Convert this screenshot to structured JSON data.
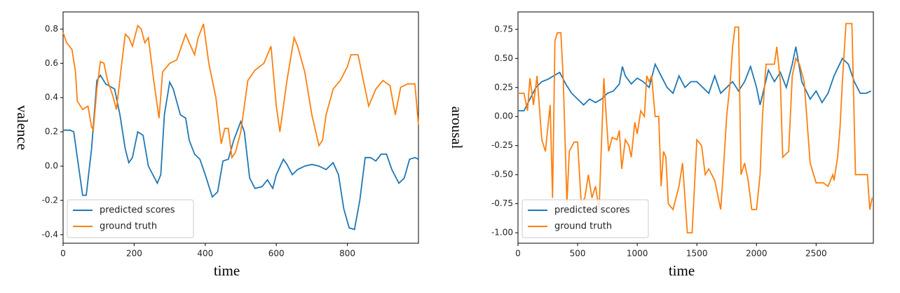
{
  "chart_data": [
    {
      "type": "line",
      "xlabel": "time",
      "ylabel": "valence",
      "xlim": [
        0,
        1000
      ],
      "ylim": [
        -0.45,
        0.9
      ],
      "xticks": [
        0,
        200,
        400,
        600,
        800
      ],
      "yticks": [
        -0.4,
        -0.2,
        {
          "value": 0,
          "label": "0.0"
        },
        0.2,
        0.4,
        0.6,
        0.8
      ],
      "legend": "lower left",
      "series": [
        {
          "name": "predicted scores",
          "color": "#1f77b4",
          "x": [
            0,
            20,
            30,
            40,
            55,
            65,
            80,
            95,
            105,
            120,
            145,
            160,
            175,
            185,
            195,
            210,
            225,
            240,
            265,
            275,
            285,
            300,
            310,
            330,
            345,
            355,
            370,
            385,
            400,
            420,
            435,
            450,
            465,
            480,
            500,
            510,
            525,
            540,
            560,
            575,
            590,
            600,
            620,
            630,
            645,
            660,
            680,
            700,
            720,
            740,
            760,
            775,
            790,
            805,
            820,
            835,
            850,
            865,
            880,
            895,
            910,
            925,
            945,
            960,
            975,
            990,
            1000
          ],
          "values": [
            0.21,
            0.21,
            0.2,
            0.05,
            -0.17,
            -0.17,
            0.1,
            0.5,
            0.53,
            0.48,
            0.45,
            0.3,
            0.1,
            0.02,
            0.05,
            0.2,
            0.18,
            0.0,
            -0.1,
            -0.05,
            0.3,
            0.49,
            0.45,
            0.3,
            0.28,
            0.15,
            0.07,
            0.04,
            -0.05,
            -0.18,
            -0.15,
            0.03,
            0.04,
            0.15,
            0.26,
            0.2,
            -0.07,
            -0.13,
            -0.12,
            -0.08,
            -0.13,
            -0.05,
            0.04,
            0.01,
            -0.05,
            -0.02,
            0.0,
            0.01,
            0.0,
            -0.02,
            0.02,
            -0.05,
            -0.25,
            -0.36,
            -0.37,
            -0.2,
            0.05,
            0.05,
            0.03,
            0.07,
            0.07,
            -0.02,
            -0.1,
            -0.07,
            0.04,
            0.05,
            0.04
          ]
        },
        {
          "name": "ground truth",
          "color": "#ff7f0e",
          "x": [
            0,
            10,
            25,
            35,
            40,
            55,
            70,
            80,
            85,
            95,
            105,
            115,
            125,
            140,
            150,
            165,
            175,
            185,
            195,
            210,
            220,
            230,
            240,
            255,
            270,
            280,
            300,
            320,
            345,
            355,
            370,
            380,
            395,
            410,
            430,
            445,
            455,
            465,
            475,
            485,
            500,
            520,
            540,
            565,
            585,
            600,
            610,
            630,
            650,
            660,
            680,
            700,
            720,
            730,
            740,
            760,
            780,
            800,
            810,
            830,
            845,
            860,
            880,
            900,
            920,
            935,
            950,
            970,
            990,
            1000
          ],
          "values": [
            0.78,
            0.72,
            0.68,
            0.55,
            0.38,
            0.33,
            0.35,
            0.23,
            0.21,
            0.45,
            0.61,
            0.6,
            0.5,
            0.41,
            0.33,
            0.6,
            0.77,
            0.75,
            0.7,
            0.82,
            0.8,
            0.72,
            0.75,
            0.5,
            0.28,
            0.55,
            0.6,
            0.62,
            0.77,
            0.72,
            0.65,
            0.75,
            0.83,
            0.6,
            0.4,
            0.13,
            0.22,
            0.22,
            0.05,
            0.08,
            0.2,
            0.5,
            0.56,
            0.6,
            0.7,
            0.35,
            0.2,
            0.5,
            0.75,
            0.7,
            0.55,
            0.3,
            0.12,
            0.15,
            0.3,
            0.45,
            0.5,
            0.58,
            0.65,
            0.65,
            0.5,
            0.35,
            0.45,
            0.5,
            0.47,
            0.3,
            0.46,
            0.48,
            0.48,
            0.24
          ]
        }
      ]
    },
    {
      "type": "line",
      "xlabel": "time",
      "ylabel": "arousal",
      "xlim": [
        0,
        2980
      ],
      "ylim": [
        -1.09,
        0.9
      ],
      "xticks": [
        0,
        500,
        1000,
        1500,
        2000,
        2500
      ],
      "yticks": [
        {
          "value": -1,
          "label": "-1.00"
        },
        -0.75,
        {
          "value": -0.5,
          "label": "-0.50"
        },
        -0.25,
        {
          "value": 0,
          "label": "0.00"
        },
        0.25,
        {
          "value": 0.5,
          "label": "0.50"
        },
        0.75
      ],
      "legend": "lower left",
      "series": [
        {
          "name": "predicted scores",
          "color": "#1f77b4",
          "x": [
            0,
            50,
            100,
            150,
            200,
            250,
            300,
            350,
            400,
            450,
            500,
            550,
            600,
            650,
            700,
            750,
            800,
            850,
            875,
            900,
            950,
            1000,
            1050,
            1100,
            1150,
            1200,
            1250,
            1300,
            1350,
            1400,
            1450,
            1500,
            1550,
            1600,
            1650,
            1700,
            1750,
            1800,
            1850,
            1900,
            1950,
            2000,
            2030,
            2100,
            2150,
            2200,
            2250,
            2300,
            2330,
            2380,
            2450,
            2500,
            2550,
            2600,
            2650,
            2720,
            2770,
            2820,
            2870,
            2920,
            2960
          ],
          "values": [
            0.05,
            0.05,
            0.15,
            0.25,
            0.3,
            0.32,
            0.35,
            0.38,
            0.28,
            0.2,
            0.15,
            0.1,
            0.15,
            0.12,
            0.15,
            0.2,
            0.22,
            0.28,
            0.43,
            0.35,
            0.28,
            0.33,
            0.3,
            0.25,
            0.45,
            0.35,
            0.25,
            0.2,
            0.35,
            0.25,
            0.3,
            0.3,
            0.25,
            0.2,
            0.35,
            0.2,
            0.25,
            0.3,
            0.22,
            0.3,
            0.43,
            0.25,
            0.1,
            0.4,
            0.3,
            0.38,
            0.25,
            0.45,
            0.6,
            0.3,
            0.15,
            0.22,
            0.12,
            0.2,
            0.35,
            0.5,
            0.45,
            0.3,
            0.2,
            0.2,
            0.22
          ]
        },
        {
          "name": "ground truth",
          "color": "#ff7f0e",
          "x": [
            0,
            50,
            80,
            100,
            130,
            160,
            200,
            230,
            270,
            290,
            310,
            330,
            360,
            380,
            410,
            430,
            470,
            500,
            530,
            560,
            590,
            620,
            650,
            680,
            720,
            740,
            760,
            790,
            830,
            850,
            870,
            900,
            930,
            950,
            980,
            1000,
            1030,
            1060,
            1080,
            1100,
            1120,
            1150,
            1180,
            1200,
            1220,
            1240,
            1260,
            1300,
            1350,
            1380,
            1420,
            1460,
            1480,
            1500,
            1540,
            1570,
            1600,
            1650,
            1700,
            1720,
            1750,
            1780,
            1800,
            1820,
            1850,
            1870,
            1900,
            1930,
            1960,
            2000,
            2030,
            2050,
            2080,
            2120,
            2150,
            2170,
            2200,
            2220,
            2270,
            2300,
            2330,
            2360,
            2400,
            2450,
            2500,
            2560,
            2600,
            2640,
            2650,
            2680,
            2700,
            2720,
            2750,
            2800,
            2830,
            2870,
            2930,
            2950,
            2970
          ],
          "values": [
            0.2,
            0.2,
            0.05,
            0.33,
            0.1,
            0.35,
            -0.2,
            -0.3,
            0.1,
            -0.7,
            0.65,
            0.72,
            0.72,
            0.3,
            -0.75,
            -0.3,
            -0.22,
            -0.22,
            -0.75,
            -0.7,
            -0.5,
            -0.7,
            -0.6,
            -0.8,
            0.33,
            0.0,
            -0.3,
            -0.18,
            -0.2,
            -0.12,
            -0.45,
            -0.2,
            -0.25,
            -0.35,
            -0.05,
            -0.15,
            0.05,
            0.0,
            0.35,
            0.3,
            0.35,
            0.0,
            0.0,
            -0.6,
            -0.3,
            -0.35,
            -0.75,
            -0.8,
            -0.6,
            -0.4,
            -1.0,
            -1.0,
            -0.6,
            -0.2,
            -0.25,
            -0.5,
            -0.45,
            -0.55,
            -0.8,
            -0.5,
            0.0,
            0.3,
            0.6,
            0.77,
            0.77,
            -0.5,
            -0.4,
            -0.55,
            -0.8,
            -0.8,
            -0.5,
            0.0,
            0.45,
            0.45,
            0.45,
            0.6,
            0.3,
            -0.35,
            -0.3,
            0.35,
            0.5,
            0.45,
            0.3,
            -0.4,
            -0.57,
            -0.57,
            -0.6,
            -0.5,
            -0.55,
            -0.35,
            -0.1,
            0.3,
            0.8,
            0.8,
            -0.5,
            -0.5,
            -0.5,
            -0.8,
            -0.7
          ]
        }
      ]
    }
  ]
}
